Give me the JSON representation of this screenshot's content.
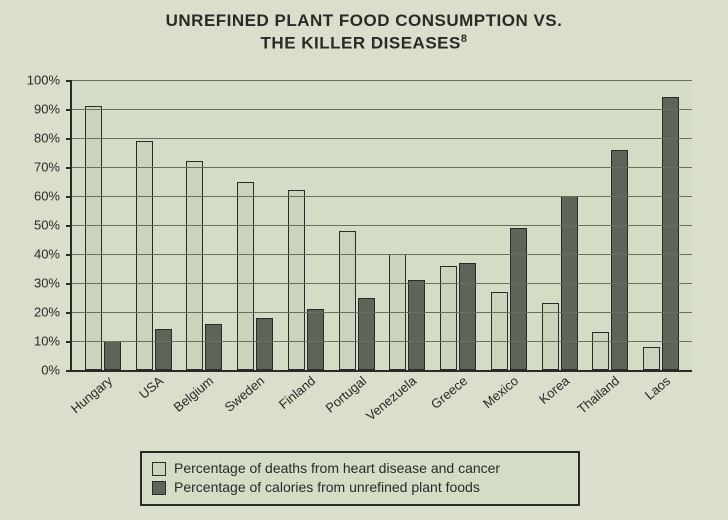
{
  "title_line1": "UNREFINED PLANT FOOD CONSUMPTION VS.",
  "title_line2": "THE KILLER DISEASES",
  "title_sup": "8",
  "chart": {
    "type": "bar",
    "background_color": "#d5dcc5",
    "page_background": "#d9dfcb",
    "axis_color": "#2a2a28",
    "gridline_color": "#6a6f60",
    "bar_light_color": "#ccd3bd",
    "bar_dark_color": "#5e6457",
    "ylim": [
      0,
      100
    ],
    "ytick_step": 10,
    "ylabels": [
      "0%",
      "10%",
      "20%",
      "30%",
      "40%",
      "50%",
      "60%",
      "70%",
      "80%",
      "90%",
      "100%"
    ],
    "categories": [
      "Hungary",
      "USA",
      "Belgium",
      "Sweden",
      "Finland",
      "Portugal",
      "Venezuela",
      "Greece",
      "Mexico",
      "Korea",
      "Thailand",
      "Laos"
    ],
    "series": [
      {
        "name": "Percentage of deaths from heart disease and cancer",
        "color": "#ccd3bd",
        "values": [
          91,
          79,
          72,
          65,
          62,
          48,
          40,
          36,
          27,
          23,
          13,
          8
        ]
      },
      {
        "name": "Percentage of calories from unrefined plant foods",
        "color": "#5e6457",
        "values": [
          10,
          14,
          16,
          18,
          21,
          25,
          31,
          37,
          49,
          60,
          76,
          94
        ]
      }
    ],
    "title_fontsize": 17,
    "label_fontsize": 13,
    "legend_fontsize": 14,
    "font_family": "Arial"
  },
  "legend": {
    "item1": "Percentage of deaths from heart disease and cancer",
    "item2": "Percentage of calories from unrefined plant foods"
  }
}
